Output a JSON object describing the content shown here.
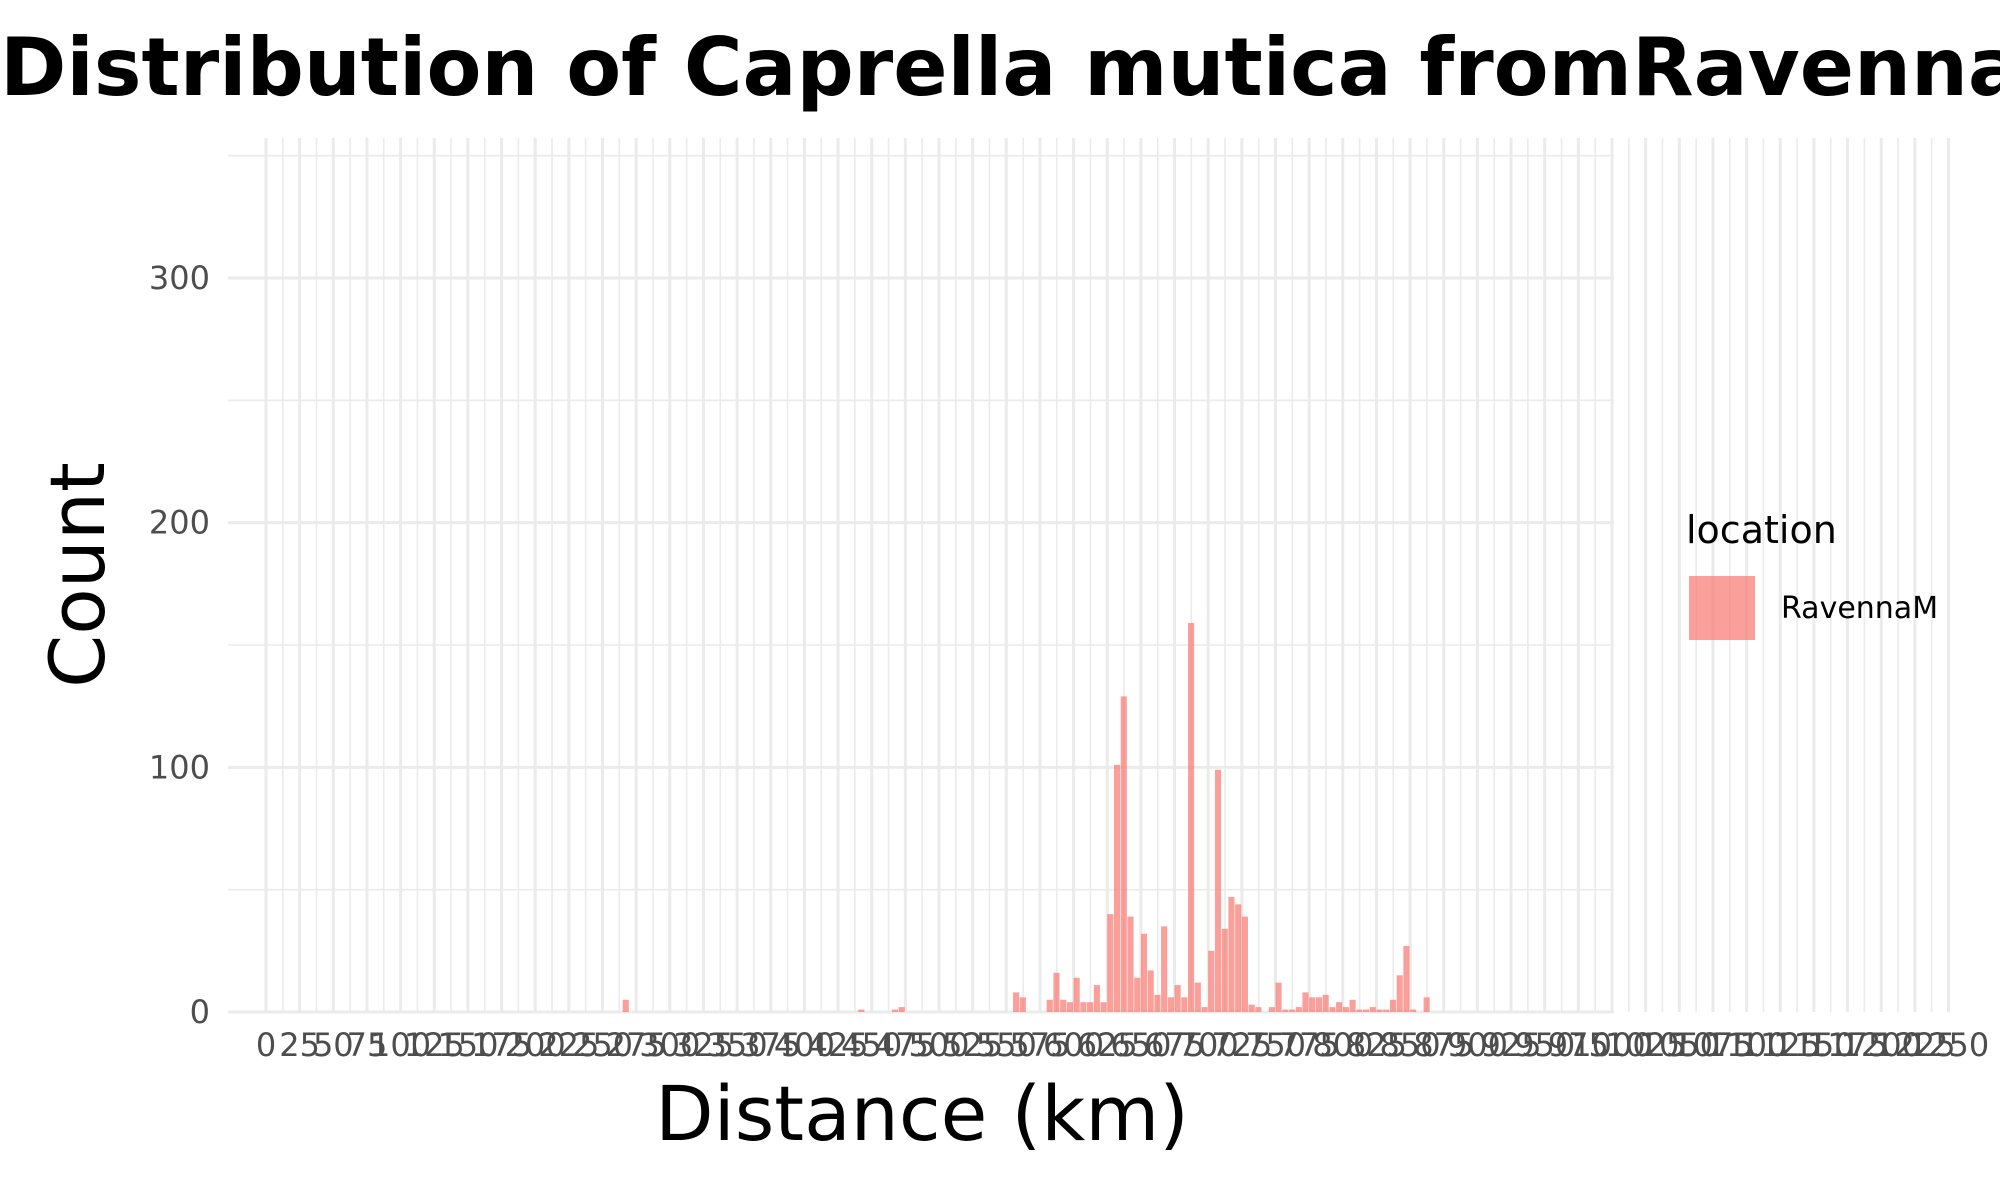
{
  "chart_data": {
    "type": "bar",
    "title": "Distribution of Caprella mutica fromRavennaM",
    "xlabel": "Distance (km)",
    "ylabel": "Count",
    "xlim": [
      0,
      1000
    ],
    "ylim": [
      0,
      350
    ],
    "x_ticks": [
      "0",
      "25",
      "50",
      "75",
      "100",
      "125",
      "150",
      "175",
      "200",
      "225",
      "250",
      "275",
      "300",
      "325",
      "350",
      "375",
      "400",
      "425",
      "450",
      "475",
      "500",
      "525",
      "550",
      "575",
      "600",
      "625",
      "650",
      "675",
      "700",
      "725",
      "750",
      "775",
      "800",
      "825",
      "850",
      "875",
      "900",
      "925",
      "950",
      "975",
      "1000",
      "1025",
      "1050",
      "1075",
      "1100",
      "1125",
      "1150",
      "1175",
      "1200",
      "1225",
      "1250"
    ],
    "y_ticks": [
      0,
      100,
      200,
      300
    ],
    "grid": true,
    "bar_color": "#F8766D",
    "bar_opacity": 0.7,
    "bin_width": 5,
    "legend": {
      "title": "location",
      "position": "right",
      "entries": [
        "RavennaM"
      ]
    },
    "series": [
      {
        "name": "RavennaM",
        "bins": [
          {
            "x": 267.5,
            "value": 5
          },
          {
            "x": 442.5,
            "value": 1
          },
          {
            "x": 467.5,
            "value": 1
          },
          {
            "x": 472.5,
            "value": 2
          },
          {
            "x": 557.5,
            "value": 8
          },
          {
            "x": 562.5,
            "value": 6
          },
          {
            "x": 582.5,
            "value": 5
          },
          {
            "x": 587.5,
            "value": 16
          },
          {
            "x": 592.5,
            "value": 5
          },
          {
            "x": 597.5,
            "value": 4
          },
          {
            "x": 602.5,
            "value": 14
          },
          {
            "x": 607.5,
            "value": 4
          },
          {
            "x": 612.5,
            "value": 4
          },
          {
            "x": 617.5,
            "value": 11
          },
          {
            "x": 622.5,
            "value": 4
          },
          {
            "x": 627.5,
            "value": 40
          },
          {
            "x": 632.5,
            "value": 101
          },
          {
            "x": 637.5,
            "value": 129
          },
          {
            "x": 642.5,
            "value": 39
          },
          {
            "x": 647.5,
            "value": 14
          },
          {
            "x": 652.5,
            "value": 32
          },
          {
            "x": 657.5,
            "value": 17
          },
          {
            "x": 662.5,
            "value": 7
          },
          {
            "x": 667.5,
            "value": 35
          },
          {
            "x": 672.5,
            "value": 6
          },
          {
            "x": 677.5,
            "value": 11
          },
          {
            "x": 682.5,
            "value": 6
          },
          {
            "x": 687.5,
            "value": 159
          },
          {
            "x": 692.5,
            "value": 12
          },
          {
            "x": 697.5,
            "value": 2
          },
          {
            "x": 702.5,
            "value": 25
          },
          {
            "x": 707.5,
            "value": 99
          },
          {
            "x": 712.5,
            "value": 34
          },
          {
            "x": 717.5,
            "value": 47
          },
          {
            "x": 722.5,
            "value": 44
          },
          {
            "x": 727.5,
            "value": 39
          },
          {
            "x": 732.5,
            "value": 3
          },
          {
            "x": 737.5,
            "value": 2
          },
          {
            "x": 747.5,
            "value": 2
          },
          {
            "x": 752.5,
            "value": 12
          },
          {
            "x": 757.5,
            "value": 1
          },
          {
            "x": 762.5,
            "value": 1
          },
          {
            "x": 767.5,
            "value": 2
          },
          {
            "x": 772.5,
            "value": 8
          },
          {
            "x": 777.5,
            "value": 6
          },
          {
            "x": 782.5,
            "value": 6
          },
          {
            "x": 787.5,
            "value": 7
          },
          {
            "x": 792.5,
            "value": 2
          },
          {
            "x": 797.5,
            "value": 4
          },
          {
            "x": 802.5,
            "value": 2
          },
          {
            "x": 807.5,
            "value": 5
          },
          {
            "x": 812.5,
            "value": 1
          },
          {
            "x": 817.5,
            "value": 1
          },
          {
            "x": 822.5,
            "value": 2
          },
          {
            "x": 827.5,
            "value": 1
          },
          {
            "x": 832.5,
            "value": 1
          },
          {
            "x": 837.5,
            "value": 5
          },
          {
            "x": 842.5,
            "value": 15
          },
          {
            "x": 847.5,
            "value": 27
          },
          {
            "x": 852.5,
            "value": 1
          },
          {
            "x": 862.5,
            "value": 6
          }
        ]
      }
    ]
  }
}
